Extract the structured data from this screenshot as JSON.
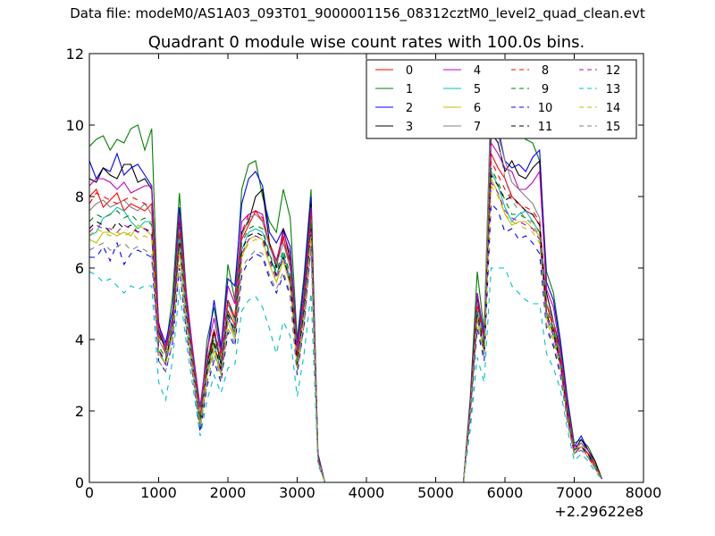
{
  "supertitle": "Data file: modeM0/AS1A03_093T01_9000001156_08312cztM0_level2_quad_clean.evt",
  "chart_data": {
    "type": "line",
    "title": "Quadrant 0 module wise count rates with 100.0s bins.",
    "xlabel": "",
    "ylabel": "",
    "xlim": [
      0,
      8000
    ],
    "ylim": [
      0,
      12
    ],
    "x_offset_label": "+2.29622e8",
    "x_ticks": [
      0,
      1000,
      2000,
      3000,
      4000,
      5000,
      6000,
      7000,
      8000
    ],
    "x_tick_labels": [
      "0",
      "1000",
      "2000",
      "3000",
      "4000",
      "5000",
      "6000",
      "7000",
      "8000"
    ],
    "y_ticks": [
      0,
      2,
      4,
      6,
      8,
      10,
      12
    ],
    "y_tick_labels": [
      "0",
      "2",
      "4",
      "6",
      "8",
      "10",
      "12"
    ],
    "grid": false,
    "legend_position": "top-right",
    "legend_columns": 4,
    "x": [
      0,
      100,
      200,
      300,
      400,
      500,
      600,
      700,
      800,
      900,
      1000,
      1100,
      1200,
      1300,
      1400,
      1500,
      1600,
      1700,
      1800,
      1900,
      2000,
      2100,
      2200,
      2300,
      2400,
      2500,
      2600,
      2700,
      2800,
      2900,
      3000,
      3100,
      3200,
      3300,
      3400,
      3500,
      5300,
      5400,
      5500,
      5600,
      5700,
      5800,
      5900,
      6000,
      6100,
      6200,
      6300,
      6400,
      6500,
      6600,
      6700,
      6800,
      6900,
      7000,
      7100,
      7200,
      7300,
      7400
    ],
    "series": [
      {
        "name": "0",
        "color": "#ff0000",
        "dash": "solid",
        "values": [
          8.0,
          8.2,
          7.7,
          7.9,
          8.1,
          7.6,
          7.8,
          7.7,
          7.6,
          7.8,
          4.5,
          3.6,
          4.6,
          7.0,
          5.0,
          3.3,
          1.8,
          3.0,
          4.2,
          3.4,
          4.8,
          4.4,
          6.8,
          7.2,
          7.6,
          7.3,
          6.7,
          6.2,
          6.9,
          6.0,
          3.3,
          5.0,
          7.5,
          0.7,
          0.0,
          0.0,
          0.0,
          0.0,
          2.2,
          5.0,
          4.0,
          9.2,
          8.8,
          8.5,
          8.0,
          7.8,
          7.6,
          7.5,
          7.2,
          5.0,
          4.3,
          3.4,
          2.0,
          0.9,
          1.0,
          0.8,
          0.4,
          0.1
        ]
      },
      {
        "name": "1",
        "color": "#008000",
        "dash": "solid",
        "values": [
          9.4,
          9.6,
          9.7,
          9.3,
          9.6,
          9.5,
          9.9,
          10.0,
          9.3,
          9.9,
          4.2,
          3.7,
          5.2,
          8.1,
          5.3,
          3.5,
          1.8,
          4.0,
          4.9,
          3.7,
          6.1,
          5.1,
          8.2,
          8.9,
          9.0,
          8.0,
          7.3,
          7.0,
          8.2,
          7.4,
          4.0,
          5.8,
          8.2,
          0.8,
          0.0,
          0.0,
          0.0,
          0.0,
          2.4,
          5.9,
          4.2,
          11.0,
          10.9,
          10.4,
          9.9,
          9.8,
          9.6,
          9.5,
          9.0,
          5.9,
          5.3,
          4.0,
          2.4,
          1.1,
          1.2,
          1.0,
          0.6,
          0.1
        ]
      },
      {
        "name": "2",
        "color": "#0000ff",
        "dash": "solid",
        "values": [
          9.0,
          8.5,
          8.8,
          8.7,
          9.2,
          8.6,
          8.8,
          8.9,
          8.6,
          8.3,
          4.4,
          3.9,
          4.8,
          7.7,
          5.2,
          3.5,
          2.1,
          3.6,
          5.1,
          3.8,
          5.7,
          5.5,
          7.8,
          8.5,
          8.7,
          8.3,
          7.0,
          6.7,
          7.1,
          6.6,
          3.8,
          5.6,
          8.0,
          0.8,
          0.0,
          0.0,
          0.0,
          0.0,
          2.3,
          5.3,
          4.1,
          10.0,
          9.8,
          9.0,
          8.8,
          8.9,
          8.7,
          9.1,
          9.3,
          5.6,
          5.1,
          3.9,
          2.3,
          1.0,
          1.3,
          0.9,
          0.5,
          0.1
        ]
      },
      {
        "name": "3",
        "color": "#000000",
        "dash": "solid",
        "values": [
          8.5,
          8.4,
          8.8,
          8.6,
          8.5,
          8.9,
          8.9,
          8.4,
          8.5,
          8.2,
          4.2,
          3.8,
          4.5,
          7.3,
          5.0,
          3.2,
          1.7,
          3.3,
          4.2,
          3.3,
          5.1,
          4.6,
          7.0,
          7.3,
          8.0,
          8.2,
          6.7,
          6.0,
          7.1,
          6.2,
          3.5,
          5.1,
          7.8,
          0.7,
          0.0,
          0.0,
          0.0,
          0.0,
          2.2,
          5.2,
          4.0,
          9.8,
          9.5,
          8.7,
          9.0,
          8.6,
          8.5,
          8.8,
          9.0,
          5.3,
          4.5,
          3.7,
          2.1,
          0.9,
          1.2,
          0.9,
          0.6,
          0.1
        ]
      },
      {
        "name": "4",
        "color": "#bf00bf",
        "dash": "solid",
        "values": [
          8.3,
          8.5,
          8.5,
          8.4,
          8.2,
          8.4,
          8.1,
          8.2,
          8.3,
          8.3,
          4.3,
          3.8,
          4.6,
          7.5,
          5.3,
          3.6,
          2.1,
          3.7,
          4.6,
          3.6,
          5.5,
          5.0,
          7.3,
          7.5,
          7.6,
          7.5,
          6.6,
          6.2,
          7.0,
          6.4,
          3.7,
          5.3,
          7.7,
          0.7,
          0.0,
          0.0,
          0.0,
          0.0,
          2.2,
          5.3,
          4.0,
          9.5,
          9.2,
          8.8,
          8.7,
          8.2,
          8.2,
          8.4,
          8.7,
          5.4,
          4.9,
          3.7,
          2.2,
          1.0,
          1.1,
          0.9,
          0.5,
          0.1
        ]
      },
      {
        "name": "5",
        "color": "#00bfbf",
        "dash": "solid",
        "values": [
          6.9,
          7.0,
          7.4,
          7.5,
          7.7,
          7.6,
          7.3,
          7.1,
          7.3,
          7.3,
          3.7,
          3.3,
          4.3,
          6.8,
          4.7,
          3.2,
          1.6,
          3.1,
          3.9,
          3.1,
          4.7,
          4.1,
          6.5,
          7.0,
          7.1,
          7.0,
          6.4,
          5.8,
          6.4,
          5.7,
          3.3,
          4.8,
          7.2,
          0.6,
          0.0,
          0.0,
          0.0,
          0.0,
          2.0,
          4.8,
          3.7,
          8.7,
          8.3,
          7.7,
          7.3,
          7.5,
          7.6,
          7.3,
          7.0,
          4.7,
          4.2,
          3.4,
          1.9,
          0.9,
          1.0,
          0.8,
          0.5,
          0.1
        ]
      },
      {
        "name": "6",
        "color": "#bfbf00",
        "dash": "solid",
        "values": [
          6.8,
          6.7,
          7.0,
          7.0,
          6.9,
          7.0,
          6.9,
          7.2,
          7.1,
          6.9,
          3.6,
          3.3,
          4.2,
          6.5,
          4.5,
          3.0,
          1.5,
          3.0,
          3.7,
          3.0,
          4.5,
          4.0,
          6.3,
          6.8,
          6.9,
          6.8,
          6.1,
          5.6,
          6.2,
          5.5,
          3.2,
          4.7,
          7.0,
          0.6,
          0.0,
          0.0,
          0.0,
          0.0,
          2.0,
          4.6,
          3.6,
          8.5,
          8.1,
          7.5,
          7.2,
          7.3,
          7.3,
          7.1,
          6.9,
          4.6,
          4.1,
          3.3,
          1.8,
          0.8,
          1.0,
          0.7,
          0.4,
          0.1
        ]
      },
      {
        "name": "7",
        "color": "#808080",
        "dash": "solid",
        "values": [
          7.6,
          7.8,
          7.9,
          7.7,
          7.8,
          7.9,
          7.7,
          7.6,
          7.8,
          7.5,
          4.0,
          3.6,
          4.5,
          7.1,
          4.9,
          3.3,
          1.7,
          3.4,
          4.3,
          3.4,
          5.0,
          4.5,
          6.9,
          7.4,
          7.5,
          7.3,
          6.6,
          6.1,
          6.7,
          6.0,
          3.5,
          5.0,
          7.4,
          0.7,
          0.0,
          0.0,
          0.0,
          0.0,
          2.1,
          5.0,
          3.9,
          10.9,
          10.0,
          9.0,
          8.4,
          8.2,
          8.0,
          7.8,
          7.4,
          5.0,
          4.5,
          3.5,
          2.0,
          0.9,
          1.1,
          0.8,
          0.5,
          0.1
        ]
      },
      {
        "name": "8",
        "color": "#ff0000",
        "dash": "dashed",
        "values": [
          7.8,
          8.1,
          8.0,
          7.9,
          7.8,
          7.9,
          8.0,
          7.9,
          7.8,
          7.7,
          4.1,
          3.7,
          4.6,
          7.2,
          5.0,
          3.4,
          1.8,
          3.4,
          4.3,
          3.5,
          5.1,
          4.6,
          7.0,
          7.5,
          7.6,
          7.4,
          6.7,
          6.2,
          6.8,
          6.1,
          3.5,
          5.1,
          7.5,
          0.7,
          0.0,
          0.0,
          0.0,
          0.0,
          2.2,
          5.0,
          3.9,
          9.0,
          8.6,
          8.2,
          7.9,
          7.8,
          7.7,
          7.6,
          7.3,
          5.0,
          4.4,
          3.5,
          2.0,
          0.9,
          1.0,
          0.8,
          0.5,
          0.1
        ]
      },
      {
        "name": "9",
        "color": "#008000",
        "dash": "dashed",
        "values": [
          7.3,
          7.5,
          7.4,
          7.5,
          7.6,
          7.4,
          7.5,
          7.3,
          7.4,
          7.2,
          3.8,
          3.5,
          4.4,
          6.9,
          4.8,
          3.2,
          1.7,
          3.2,
          4.0,
          3.2,
          4.8,
          4.3,
          6.7,
          7.1,
          7.2,
          7.1,
          6.4,
          5.9,
          6.5,
          5.8,
          3.3,
          4.9,
          7.3,
          0.6,
          0.0,
          0.0,
          0.0,
          0.0,
          2.1,
          4.8,
          3.8,
          8.8,
          8.4,
          7.9,
          7.5,
          7.5,
          7.4,
          7.3,
          7.0,
          4.8,
          4.3,
          3.4,
          1.9,
          0.9,
          1.0,
          0.8,
          0.5,
          0.1
        ]
      },
      {
        "name": "10",
        "color": "#0000ff",
        "dash": "dashed",
        "values": [
          6.3,
          6.3,
          6.6,
          6.2,
          6.7,
          6.1,
          6.4,
          6.5,
          6.4,
          6.3,
          3.4,
          3.1,
          3.9,
          6.0,
          4.2,
          2.9,
          1.4,
          2.7,
          3.4,
          2.8,
          4.2,
          3.8,
          5.8,
          6.2,
          6.4,
          6.3,
          5.7,
          5.3,
          5.8,
          5.2,
          3.0,
          4.4,
          6.6,
          0.6,
          0.0,
          0.0,
          0.0,
          0.0,
          1.8,
          4.3,
          3.4,
          7.8,
          7.6,
          7.0,
          7.1,
          6.8,
          6.9,
          6.7,
          6.4,
          4.3,
          3.8,
          3.0,
          1.7,
          0.8,
          0.9,
          0.7,
          0.4,
          0.1
        ]
      },
      {
        "name": "11",
        "color": "#000000",
        "dash": "dashed",
        "values": [
          7.1,
          7.3,
          7.2,
          7.0,
          7.3,
          7.1,
          7.2,
          7.0,
          7.1,
          7.0,
          3.7,
          3.4,
          4.3,
          6.7,
          4.6,
          3.1,
          1.6,
          3.1,
          3.9,
          3.1,
          4.7,
          4.2,
          6.5,
          6.9,
          7.0,
          6.9,
          6.3,
          5.8,
          6.3,
          5.6,
          3.3,
          4.8,
          7.1,
          0.6,
          0.0,
          0.0,
          0.0,
          0.0,
          2.0,
          4.7,
          3.7,
          8.6,
          8.3,
          7.9,
          8.0,
          7.8,
          7.6,
          7.5,
          7.2,
          4.7,
          4.2,
          3.3,
          1.9,
          0.8,
          1.0,
          0.8,
          0.4,
          0.1
        ]
      },
      {
        "name": "12",
        "color": "#bf00bf",
        "dash": "dashed",
        "values": [
          7.0,
          7.2,
          7.1,
          7.1,
          7.0,
          7.2,
          7.1,
          7.0,
          7.1,
          6.9,
          3.7,
          3.3,
          4.2,
          6.6,
          4.6,
          3.1,
          1.6,
          3.0,
          3.8,
          3.1,
          4.6,
          4.2,
          6.4,
          6.8,
          6.9,
          6.8,
          6.2,
          5.7,
          6.3,
          5.6,
          3.2,
          4.7,
          7.0,
          0.6,
          0.0,
          0.0,
          0.0,
          0.0,
          2.0,
          4.6,
          3.6,
          8.4,
          8.1,
          7.6,
          7.4,
          7.3,
          7.2,
          7.1,
          6.8,
          4.6,
          4.1,
          3.3,
          1.8,
          0.8,
          1.0,
          0.7,
          0.4,
          0.1
        ]
      },
      {
        "name": "13",
        "color": "#00bfbf",
        "dash": "dashed",
        "values": [
          5.9,
          5.8,
          5.6,
          5.7,
          5.5,
          5.3,
          5.5,
          5.4,
          5.5,
          5.5,
          2.8,
          2.3,
          3.4,
          5.4,
          3.9,
          2.6,
          1.3,
          2.3,
          3.0,
          2.5,
          3.2,
          3.3,
          4.8,
          5.1,
          5.2,
          4.9,
          4.3,
          3.6,
          4.5,
          4.1,
          2.4,
          3.6,
          5.3,
          0.5,
          0.0,
          0.0,
          0.0,
          0.0,
          1.5,
          3.5,
          2.8,
          6.0,
          6.0,
          6.0,
          5.5,
          5.3,
          5.1,
          5.0,
          5.0,
          3.6,
          3.2,
          2.6,
          1.5,
          0.6,
          0.8,
          0.6,
          0.3,
          0.1
        ]
      },
      {
        "name": "14",
        "color": "#bfbf00",
        "dash": "dashed",
        "values": [
          6.9,
          7.1,
          7.0,
          6.9,
          7.0,
          6.9,
          7.0,
          6.8,
          6.9,
          6.8,
          3.6,
          3.3,
          4.1,
          6.5,
          4.5,
          3.0,
          1.6,
          3.0,
          3.8,
          3.0,
          4.5,
          4.1,
          6.3,
          6.7,
          6.8,
          6.7,
          6.1,
          5.6,
          6.2,
          5.5,
          3.2,
          4.6,
          6.9,
          0.6,
          0.0,
          0.0,
          0.0,
          0.0,
          2.0,
          4.6,
          3.6,
          8.3,
          8.0,
          7.5,
          7.3,
          7.2,
          7.1,
          7.0,
          6.7,
          4.5,
          4.0,
          3.2,
          1.8,
          0.8,
          1.0,
          0.7,
          0.4,
          0.1
        ]
      },
      {
        "name": "15",
        "color": "#808080",
        "dash": "dashed",
        "values": [
          6.5,
          6.6,
          6.7,
          6.5,
          6.6,
          6.7,
          6.5,
          6.6,
          6.5,
          6.4,
          3.4,
          3.1,
          3.9,
          6.1,
          4.3,
          2.9,
          1.5,
          2.8,
          3.6,
          2.9,
          4.3,
          3.9,
          6.0,
          6.3,
          6.5,
          6.4,
          5.8,
          5.4,
          5.9,
          5.3,
          3.1,
          4.4,
          6.6,
          0.6,
          0.0,
          0.0,
          0.0,
          0.0,
          1.9,
          4.4,
          3.5,
          10.3,
          9.6,
          8.5,
          7.9,
          7.6,
          7.4,
          7.2,
          6.9,
          4.4,
          3.9,
          3.1,
          1.7,
          0.8,
          0.9,
          0.7,
          0.4,
          0.1
        ]
      }
    ]
  }
}
